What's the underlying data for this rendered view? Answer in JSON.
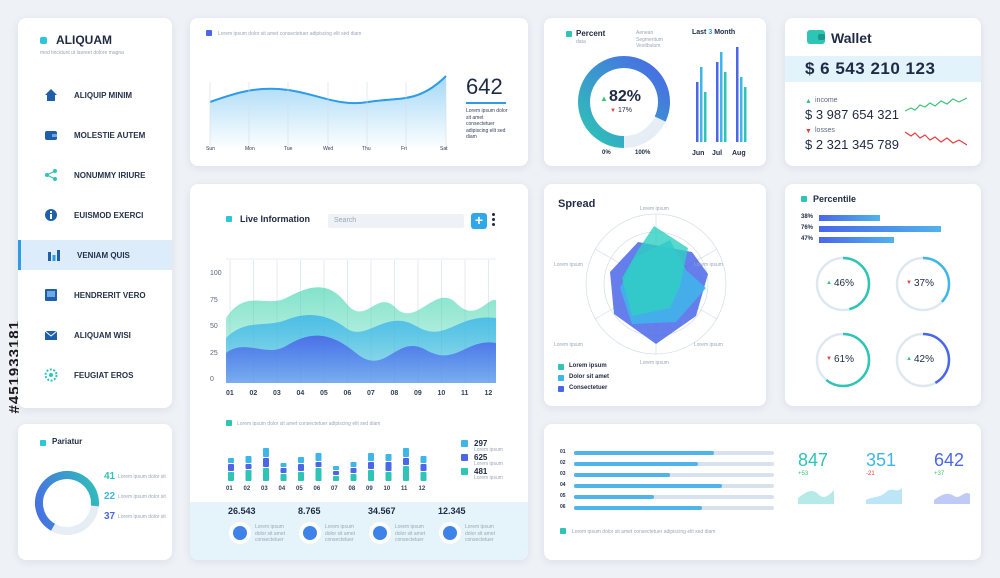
{
  "sidebar": {
    "brand": "ALIQUAM",
    "subtitle": "mod tincidunt ut laoreet dolore magna",
    "items": [
      {
        "label": "ALIQUIP MINIM",
        "icon": "home-icon"
      },
      {
        "label": "MOLESTIE AUTEM",
        "icon": "wallet-icon"
      },
      {
        "label": "NONUMMY IRIURE",
        "icon": "share-icon"
      },
      {
        "label": "EUISMOD EXERCI",
        "icon": "info-icon"
      },
      {
        "label": "VENIAM QUIS",
        "icon": "bar-chart-icon",
        "active": true
      },
      {
        "label": "HENDRERIT VERO",
        "icon": "monitor-icon"
      },
      {
        "label": "ALIQUAM WISI",
        "icon": "mail-icon"
      },
      {
        "label": "FEUGIAT EROS",
        "icon": "settings-icon"
      }
    ]
  },
  "pariatur": {
    "title": "Pariatur",
    "rows": [
      {
        "value": "41",
        "text": "Lorem ipsum dolor sit",
        "color": "#2ec4b6"
      },
      {
        "value": "22",
        "text": "Lorem ipsum dolor sit",
        "color": "#3fb6ea"
      },
      {
        "value": "37",
        "text": "Lorem ipsum dolor sit",
        "color": "#4a67e8"
      }
    ]
  },
  "topline": {
    "caption": "Lorem ipsum dolor sit amet consectetuer adipiscing elit sed diam",
    "value": "642",
    "note": "Lorem ipsum dolor sit amet consectetuer adipiscing elit sed diam",
    "days": [
      "Sun",
      "Mon",
      "Tue",
      "Wed",
      "Thu",
      "Fri",
      "Sat"
    ]
  },
  "percent": {
    "title": "Percent",
    "sub": "data",
    "note": "Aenean Segmentum Vestibulum",
    "value": "82%",
    "delta": "17%",
    "min_label": "0%",
    "max_label": "100%",
    "month_title_pre": "Last ",
    "month_title_num": "3",
    "month_title_post": " Month",
    "months": [
      "Jun",
      "Jul",
      "Aug"
    ]
  },
  "wallet": {
    "title": "Wallet",
    "amount": "$ 6 543 210 123",
    "income_label": "income",
    "income_value": "$ 3 987 654 321",
    "losses_label": "losses",
    "losses_value": "$ 2 321 345 789",
    "colors": {
      "income": "#3cc47c",
      "losses": "#e83c3c"
    }
  },
  "live": {
    "title": "Live Information",
    "search_placeholder": "Search",
    "y_ticks": [
      "100",
      "75",
      "50",
      "25",
      "0"
    ],
    "x_ticks": [
      "01",
      "02",
      "03",
      "04",
      "05",
      "06",
      "07",
      "08",
      "09",
      "10",
      "11",
      "12"
    ],
    "caption": "Lorem ipsum dolor sit amet consectetuer adipiscing elit sed diam",
    "bar_x_ticks": [
      "01",
      "02",
      "03",
      "04",
      "05",
      "06",
      "07",
      "08",
      "09",
      "10",
      "11",
      "12"
    ],
    "legend": [
      {
        "value": "297",
        "text": "Lorem ipsum",
        "color": "#3fb6ea"
      },
      {
        "value": "625",
        "text": "Lorem ipsum",
        "color": "#4a67e8"
      },
      {
        "value": "481",
        "text": "Lorem ipsum",
        "color": "#2ec4b6"
      }
    ],
    "stats": [
      {
        "value": "26.543",
        "text": "Lorem ipsum dolor sit amet consectetuer"
      },
      {
        "value": "8.765",
        "text": "Lorem ipsum dolor sit amet consectetuer"
      },
      {
        "value": "34.567",
        "text": "Lorem ipsum dolor sit amet consectetuer"
      },
      {
        "value": "12.345",
        "text": "Lorem ipsum dolor sit amet consectetuer"
      }
    ]
  },
  "spread": {
    "title": "Spread",
    "axis_labels": [
      "Lorem ipsum",
      "Lorem ipsum",
      "Lorem ipsum",
      "Lorem ipsum",
      "Lorem ipsum",
      "Lorem ipsum"
    ],
    "legend": [
      {
        "text": "Lorem ipsum",
        "color": "#2ec4b6"
      },
      {
        "text": "Dolor sit amet",
        "color": "#3fb6ea"
      },
      {
        "text": "Consectetuer",
        "color": "#4a67e8"
      }
    ]
  },
  "percentile": {
    "title": "Percentile",
    "bars": [
      {
        "label": "38%",
        "value": 38
      },
      {
        "label": "76%",
        "value": 76
      },
      {
        "label": "47%",
        "value": 47
      }
    ],
    "rings": [
      {
        "value": "46%",
        "dir": "up",
        "pct": 46
      },
      {
        "value": "37%",
        "dir": "down",
        "pct": 37
      },
      {
        "value": "61%",
        "dir": "down",
        "pct": 61
      },
      {
        "value": "42%",
        "dir": "up",
        "pct": 42
      }
    ]
  },
  "bottom": {
    "rows": [
      {
        "label": "01",
        "pct": 70
      },
      {
        "label": "02",
        "pct": 62
      },
      {
        "label": "03",
        "pct": 48
      },
      {
        "label": "04",
        "pct": 74
      },
      {
        "label": "05",
        "pct": 40
      },
      {
        "label": "06",
        "pct": 64
      }
    ],
    "caption": "Lorem ipsum dolor sit amet consectetuer adipiscing elit sed diam",
    "kpis": [
      {
        "value": "847",
        "delta": "+53",
        "color": "#2ec4b6"
      },
      {
        "value": "351",
        "delta": "-21",
        "color": "#3fb6ea"
      },
      {
        "value": "642",
        "delta": "+37",
        "color": "#4a67e8"
      }
    ]
  },
  "watermark": "#451933181"
}
